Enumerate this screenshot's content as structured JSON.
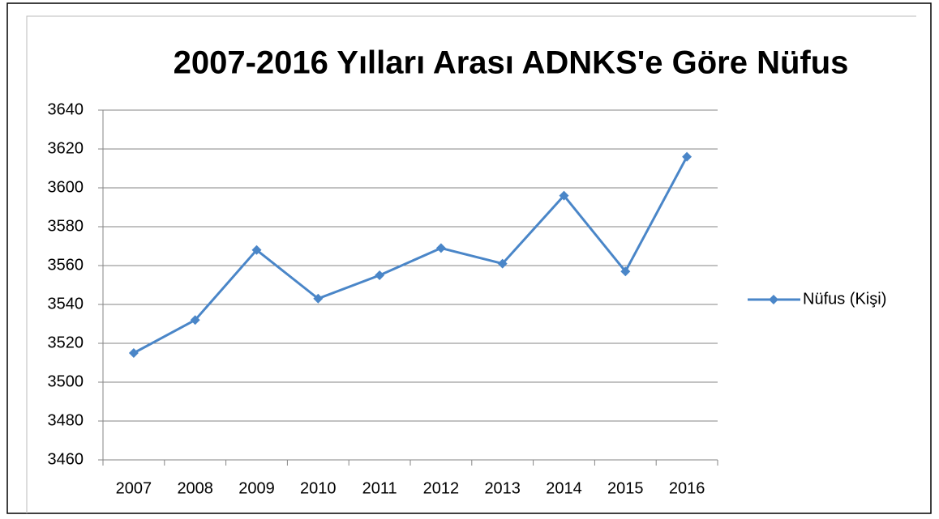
{
  "chart_data": {
    "type": "line",
    "title": "2007-2016 Yılları Arası ADNKS'e Göre Nüfus",
    "categories": [
      "2007",
      "2008",
      "2009",
      "2010",
      "2011",
      "2012",
      "2013",
      "2014",
      "2015",
      "2016"
    ],
    "series": [
      {
        "name": "Nüfus (Kişi)",
        "color": "#4a86c8",
        "values": [
          3515,
          3532,
          3568,
          3543,
          3555,
          3569,
          3561,
          3596,
          3557,
          3616
        ]
      }
    ],
    "ylim": [
      3460,
      3640
    ],
    "yticks": [
      3460,
      3480,
      3500,
      3520,
      3540,
      3560,
      3580,
      3600,
      3620,
      3640
    ],
    "grid": true,
    "legend": "right"
  }
}
